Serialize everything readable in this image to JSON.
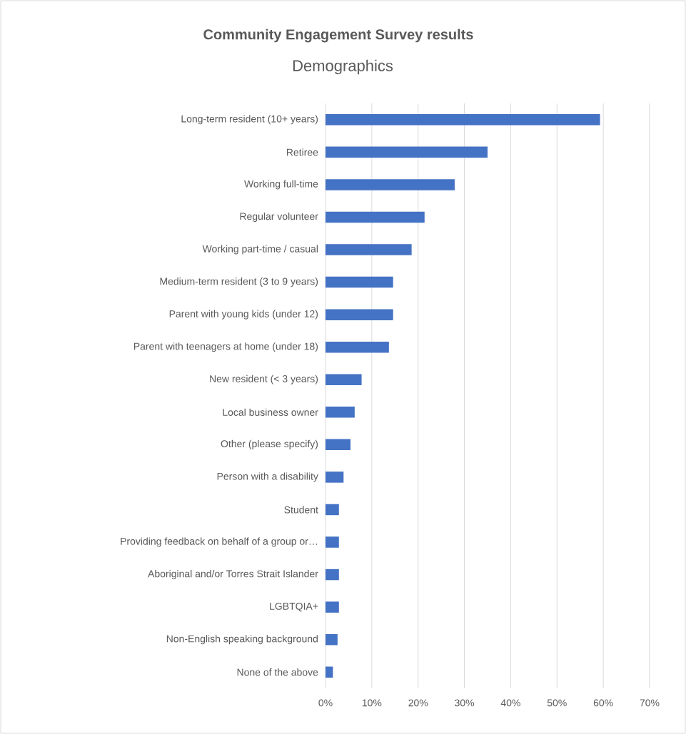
{
  "chart_data": {
    "type": "bar",
    "orientation": "horizontal",
    "title": "Community Engagement Survey results",
    "subtitle": "Demographics",
    "categories": [
      "Long-term resident (10+ years)",
      "Retiree",
      "Working full-time",
      "Regular volunteer",
      "Working part-time / casual",
      "Medium-term resident (3 to 9 years)",
      "Parent with young kids (under 12)",
      "Parent with teenagers at home (under 18)",
      "New resident (< 3 years)",
      "Local business owner",
      "Other (please specify)",
      "Person with a disability",
      "Student",
      "Providing feedback on behalf of a group or…",
      "Aboriginal and/or Torres Strait Islander",
      "LGBTQIA+",
      "Non-English speaking background",
      "None of the above"
    ],
    "values": [
      59.3,
      35.0,
      27.9,
      21.4,
      18.6,
      14.6,
      14.6,
      13.7,
      7.8,
      6.3,
      5.4,
      3.9,
      2.9,
      2.9,
      2.9,
      2.9,
      2.6,
      1.6
    ],
    "color": "#4472c4",
    "xlim": [
      0,
      70
    ],
    "xticks": [
      {
        "value": 0,
        "label": "0%"
      },
      {
        "value": 10,
        "label": "10%"
      },
      {
        "value": 20,
        "label": "20%"
      },
      {
        "value": 30,
        "label": "30%"
      },
      {
        "value": 40,
        "label": "40%"
      },
      {
        "value": 50,
        "label": "50%"
      },
      {
        "value": 60,
        "label": "60%"
      },
      {
        "value": 70,
        "label": "70%"
      }
    ],
    "grid": "x"
  }
}
